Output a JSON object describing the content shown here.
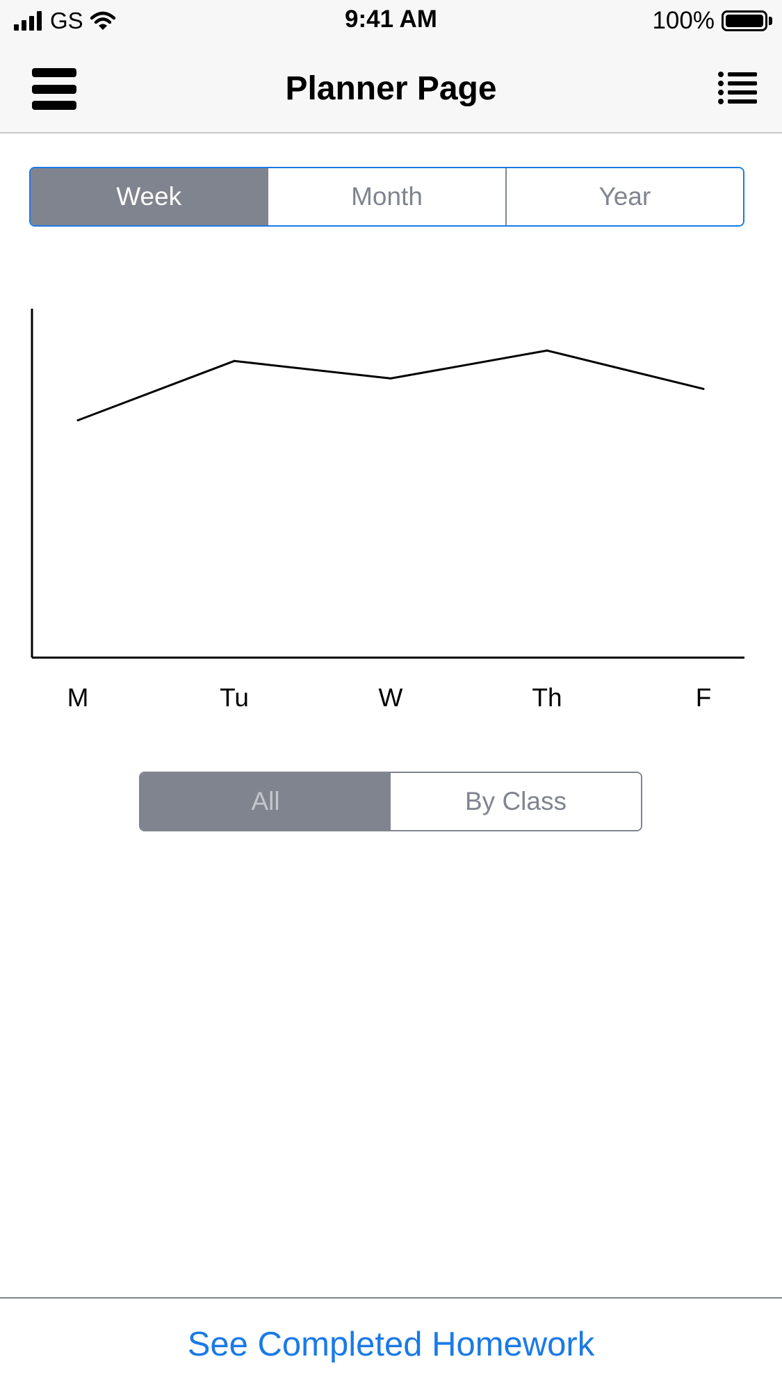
{
  "status_bar": {
    "carrier": "GS",
    "time": "9:41 AM",
    "battery_percent": "100%",
    "battery_level": 1.0
  },
  "nav": {
    "title": "Planner Page",
    "left_icon": "hamburger-menu-icon",
    "right_icon": "list-icon"
  },
  "period_selector": {
    "options": [
      "Week",
      "Month",
      "Year"
    ],
    "selected": "Week"
  },
  "chart_data": {
    "type": "line",
    "categories": [
      "M",
      "Tu",
      "W",
      "Th",
      "F"
    ],
    "series": [
      {
        "values": [
          68,
          85,
          80,
          88,
          77
        ]
      }
    ],
    "ylim": [
      0,
      100
    ],
    "title": "",
    "xlabel": "",
    "ylabel": "",
    "grid": false,
    "line_color": "#000000"
  },
  "filter_selector": {
    "options": [
      "All",
      "By Class"
    ],
    "selected": "All"
  },
  "footer": {
    "link_label": "See Completed Homework",
    "link_color": "#1a7ae6"
  }
}
